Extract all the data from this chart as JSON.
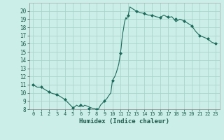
{
  "title": "",
  "xlabel": "Humidex (Indice chaleur)",
  "ylabel": "",
  "background_color": "#cceee8",
  "line_color": "#1a6b5a",
  "marker_color": "#1a6b5a",
  "grid_color": "#aad4cc",
  "ylim": [
    8,
    21
  ],
  "xlim": [
    -0.5,
    23.5
  ],
  "yticks": [
    8,
    9,
    10,
    11,
    12,
    13,
    14,
    15,
    16,
    17,
    18,
    19,
    20
  ],
  "xticks": [
    0,
    1,
    2,
    3,
    4,
    5,
    6,
    7,
    8,
    9,
    10,
    11,
    12,
    13,
    14,
    15,
    16,
    17,
    18,
    19,
    20,
    21,
    22,
    23
  ],
  "x": [
    0,
    0.5,
    1,
    1.5,
    2,
    2.5,
    3,
    3.5,
    4,
    4.5,
    5,
    5.2,
    5.5,
    5.8,
    6,
    6.3,
    6.5,
    7,
    7.5,
    7.8,
    8,
    8.3,
    8.5,
    8.8,
    9,
    9.3,
    9.5,
    9.8,
    10,
    10.3,
    10.5,
    10.8,
    11,
    11.1,
    11.2,
    11.3,
    11.4,
    11.5,
    11.6,
    11.7,
    11.8,
    11.9,
    12,
    12.2,
    12.5,
    13,
    13.5,
    14,
    14.5,
    15,
    15.5,
    16,
    16.5,
    17,
    17.5,
    18,
    18.5,
    19,
    19.5,
    20,
    20.5,
    21,
    21.5,
    22,
    22.5,
    23
  ],
  "y": [
    11.0,
    10.7,
    10.7,
    10.4,
    10.1,
    9.9,
    9.8,
    9.5,
    9.2,
    8.7,
    8.2,
    8.25,
    8.5,
    8.3,
    8.5,
    8.3,
    8.5,
    8.3,
    8.1,
    8.05,
    8.0,
    8.1,
    8.5,
    8.8,
    9.0,
    9.3,
    9.6,
    10.0,
    11.5,
    12.0,
    12.5,
    13.5,
    14.8,
    15.5,
    16.5,
    17.3,
    17.8,
    18.5,
    18.9,
    19.2,
    19.0,
    19.3,
    19.5,
    20.5,
    20.3,
    20.0,
    19.8,
    19.7,
    19.5,
    19.5,
    19.3,
    19.2,
    19.5,
    19.2,
    19.3,
    18.7,
    19.0,
    18.8,
    18.5,
    18.2,
    17.5,
    17.0,
    16.8,
    16.6,
    16.2,
    16.0
  ],
  "marker_x": [
    0,
    1,
    2,
    3,
    4,
    5,
    6,
    7,
    8,
    9,
    10,
    11,
    12,
    13,
    14,
    15,
    16,
    17,
    18,
    19,
    20,
    21,
    22,
    23
  ],
  "marker_y": [
    11.0,
    10.7,
    10.1,
    9.8,
    9.2,
    8.2,
    8.5,
    8.1,
    8.0,
    9.0,
    11.5,
    14.8,
    19.5,
    20.0,
    19.7,
    19.5,
    19.2,
    19.3,
    19.0,
    18.8,
    18.2,
    17.0,
    16.6,
    16.0
  ]
}
